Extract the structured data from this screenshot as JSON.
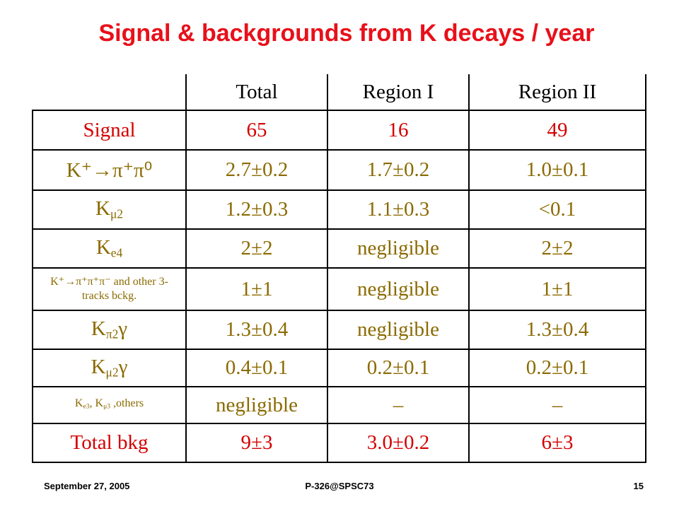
{
  "header": {
    "title": "Signal & backgrounds from K decays / year"
  },
  "table": {
    "columns": [
      "Total",
      "Region I",
      "Region II"
    ],
    "rows": [
      {
        "color": "#d40000",
        "label": [
          {
            "text": "Signal"
          }
        ],
        "cells": [
          "65",
          "16",
          "49"
        ]
      },
      {
        "color": "#8a6a00",
        "label": [
          {
            "text": "K⁺→π⁺π⁰"
          }
        ],
        "cells": [
          "2.7±0.2",
          "1.7±0.2",
          "1.0±0.1"
        ]
      },
      {
        "color": "#8a6a00",
        "label": [
          {
            "text": "K"
          },
          {
            "sub": "μ2"
          }
        ],
        "cells": [
          "1.2±0.3",
          "1.1±0.3",
          "<0.1"
        ]
      },
      {
        "color": "#8a6a00",
        "label": [
          {
            "text": "K"
          },
          {
            "sub": "e4"
          }
        ],
        "cells": [
          "2±2",
          "negligible",
          "2±2"
        ]
      },
      {
        "color": "#8a6a00",
        "small": true,
        "label": [
          {
            "text": "K⁺→π⁺π⁺π⁻ and other 3-tracks bckg."
          }
        ],
        "cells": [
          "1±1",
          "negligible",
          "1±1"
        ]
      },
      {
        "color": "#8a6a00",
        "label": [
          {
            "text": "K"
          },
          {
            "sub": "π2"
          },
          {
            "text": "γ"
          }
        ],
        "cells": [
          "1.3±0.4",
          "negligible",
          "1.3±0.4"
        ]
      },
      {
        "color": "#8a6a00",
        "label": [
          {
            "text": "K"
          },
          {
            "sub": "μ2"
          },
          {
            "text": "γ"
          }
        ],
        "cells": [
          "0.4±0.1",
          "0.2±0.1",
          "0.2±0.1"
        ]
      },
      {
        "color": "#8a6a00",
        "small": true,
        "label": [
          {
            "text": "K"
          },
          {
            "sub": "e3"
          },
          {
            "text": ", K"
          },
          {
            "sub": "μ3"
          },
          {
            "text": " ,others"
          }
        ],
        "cells": [
          "negligible",
          "–",
          "–"
        ]
      },
      {
        "color": "#d40000",
        "label": [
          {
            "text": "Total bkg"
          }
        ],
        "cells": [
          "9±3",
          "3.0±0.2",
          "6±3"
        ]
      }
    ]
  },
  "footer": {
    "date": "September 27, 2005",
    "event": "P-326@SPSC73",
    "page": "15"
  }
}
